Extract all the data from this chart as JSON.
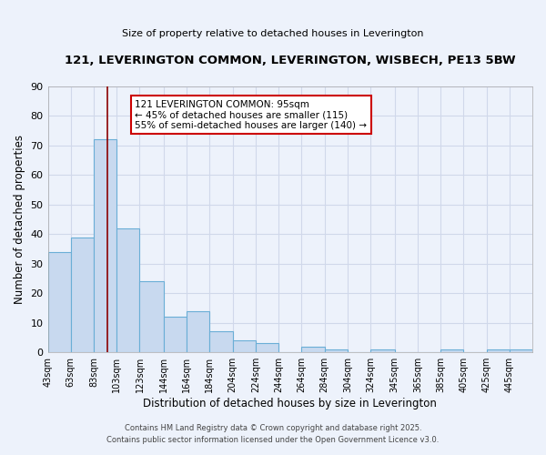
{
  "title": "121, LEVERINGTON COMMON, LEVERINGTON, WISBECH, PE13 5BW",
  "subtitle": "Size of property relative to detached houses in Leverington",
  "xlabel": "Distribution of detached houses by size in Leverington",
  "ylabel": "Number of detached properties",
  "bar_color": "#c8d9ef",
  "bar_edge_color": "#6aaed6",
  "background_color": "#edf2fb",
  "grid_color": "#d0d8ea",
  "bin_labels": [
    "43sqm",
    "63sqm",
    "83sqm",
    "103sqm",
    "123sqm",
    "144sqm",
    "164sqm",
    "184sqm",
    "204sqm",
    "224sqm",
    "244sqm",
    "264sqm",
    "284sqm",
    "304sqm",
    "324sqm",
    "345sqm",
    "365sqm",
    "385sqm",
    "405sqm",
    "425sqm",
    "445sqm"
  ],
  "bin_edges": [
    43,
    63,
    83,
    103,
    123,
    144,
    164,
    184,
    204,
    224,
    244,
    264,
    284,
    304,
    324,
    345,
    365,
    385,
    405,
    425,
    445
  ],
  "bin_widths": [
    20,
    20,
    20,
    20,
    21,
    20,
    20,
    20,
    20,
    20,
    20,
    20,
    20,
    20,
    21,
    20,
    20,
    20,
    20,
    20,
    20
  ],
  "counts": [
    34,
    39,
    72,
    42,
    24,
    12,
    14,
    7,
    4,
    3,
    0,
    2,
    1,
    0,
    1,
    0,
    0,
    1,
    0,
    1,
    1
  ],
  "ylim": [
    0,
    90
  ],
  "yticks": [
    0,
    10,
    20,
    30,
    40,
    50,
    60,
    70,
    80,
    90
  ],
  "xlim_min": 43,
  "xlim_max": 465,
  "red_line_x": 95,
  "annotation_title": "121 LEVERINGTON COMMON: 95sqm",
  "annotation_line1": "← 45% of detached houses are smaller (115)",
  "annotation_line2": "55% of semi-detached houses are larger (140) →",
  "annotation_box_color": "#ffffff",
  "annotation_box_edge": "#cc0000",
  "footnote1": "Contains HM Land Registry data © Crown copyright and database right 2025.",
  "footnote2": "Contains public sector information licensed under the Open Government Licence v3.0."
}
